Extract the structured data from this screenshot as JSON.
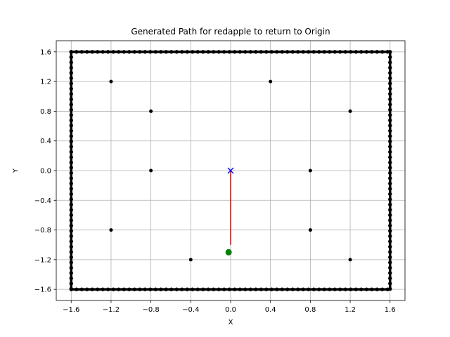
{
  "chart_data": {
    "type": "scatter",
    "title": "Generated Path for redapple to return to Origin",
    "xlabel": "X",
    "ylabel": "Y",
    "xlim": [
      -1.75,
      1.75
    ],
    "ylim": [
      -1.75,
      1.75
    ],
    "xticks": [
      -1.6,
      -1.2,
      -0.8,
      -0.4,
      0.0,
      0.4,
      0.8,
      1.2,
      1.6
    ],
    "yticks": [
      -1.6,
      -1.2,
      -0.8,
      -0.4,
      0.0,
      0.4,
      0.8,
      1.2,
      1.6
    ],
    "xtick_labels": [
      "−1.6",
      "−1.2",
      "−0.8",
      "−0.4",
      "0.0",
      "0.4",
      "0.8",
      "1.2",
      "1.6"
    ],
    "ytick_labels": [
      "−1.6",
      "−1.2",
      "−0.8",
      "−0.4",
      "0.0",
      "0.4",
      "0.8",
      "1.2",
      "1.6"
    ],
    "grid": true,
    "boundary": {
      "x_range": [
        -1.6,
        1.6
      ],
      "y_range": [
        -1.6,
        1.6
      ],
      "color": "#000000"
    },
    "obstacles": {
      "color": "#000000",
      "points": [
        [
          -1.2,
          1.2
        ],
        [
          0.4,
          1.2
        ],
        [
          -0.8,
          0.8
        ],
        [
          1.2,
          0.8
        ],
        [
          -0.8,
          0.0
        ],
        [
          0.8,
          0.0
        ],
        [
          -1.2,
          -0.8
        ],
        [
          0.8,
          -0.8
        ],
        [
          -0.4,
          -1.2
        ],
        [
          1.2,
          -1.2
        ]
      ]
    },
    "path": {
      "color": "#ff0000",
      "points": [
        [
          0.0,
          -1.0
        ],
        [
          0.0,
          0.0
        ]
      ]
    },
    "start": {
      "x": -0.02,
      "y": -1.1,
      "color": "#008000"
    },
    "goal": {
      "x": 0.0,
      "y": 0.0,
      "color": "#0000ff"
    }
  }
}
